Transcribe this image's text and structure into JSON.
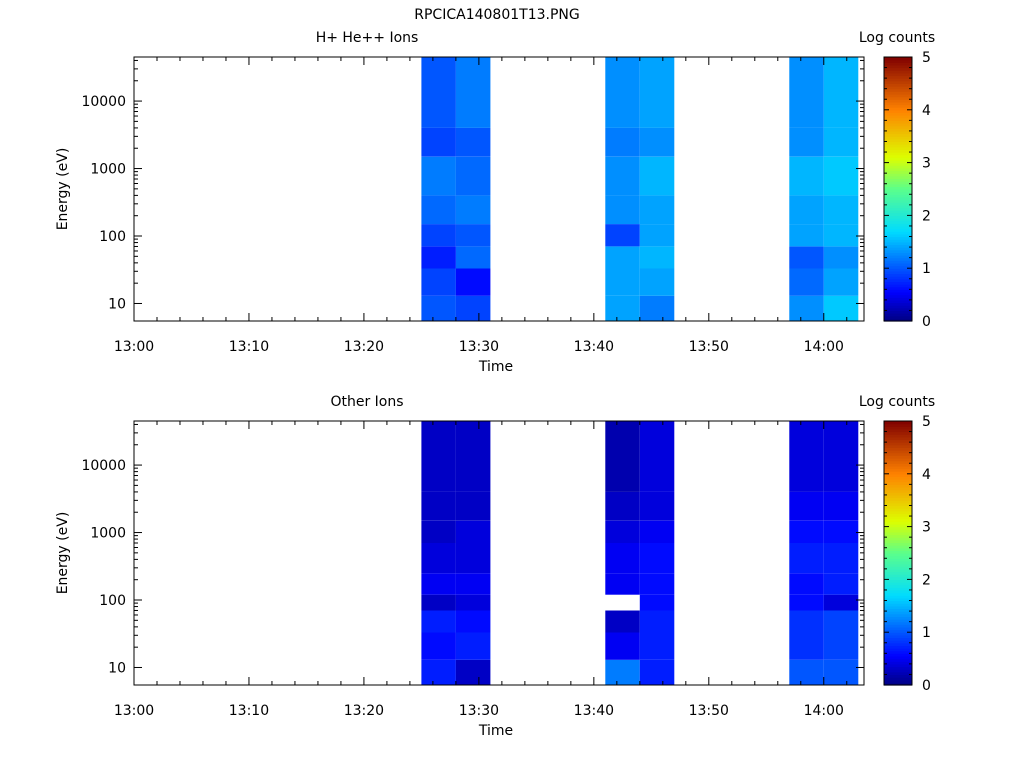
{
  "figure_title": "RPCICA140801T13.PNG",
  "chart_data": [
    {
      "type": "heatmap",
      "title": "H+ He++ Ions",
      "xlabel": "Time",
      "ylabel": "Energy (eV)",
      "xticks": [
        "13:00",
        "13:10",
        "13:20",
        "13:30",
        "13:40",
        "13:50",
        "14:00"
      ],
      "yticks": [
        "10",
        "100",
        "1000",
        "10000"
      ],
      "y_scale": "log",
      "ylim": [
        5.5,
        45000
      ],
      "colorbar": {
        "label": "Log counts",
        "ticks": [
          "0",
          "1",
          "2",
          "3",
          "4",
          "5"
        ],
        "range": [
          0,
          5
        ]
      },
      "columns": [
        {
          "t_start": "13:25",
          "t_end": "13:28",
          "cells": [
            [
              5.5,
              13,
              1.0
            ],
            [
              13,
              33,
              0.9
            ],
            [
              33,
              70,
              0.7
            ],
            [
              70,
              150,
              0.9
            ],
            [
              150,
              400,
              1.1
            ],
            [
              400,
              1500,
              1.2
            ],
            [
              1500,
              4000,
              0.9
            ],
            [
              4000,
              45000,
              1.0
            ]
          ]
        },
        {
          "t_start": "13:28",
          "t_end": "13:31",
          "cells": [
            [
              5.5,
              13,
              0.9
            ],
            [
              13,
              33,
              0.6
            ],
            [
              33,
              70,
              1.1
            ],
            [
              70,
              150,
              1.0
            ],
            [
              150,
              400,
              1.2
            ],
            [
              400,
              1500,
              1.1
            ],
            [
              1500,
              4000,
              1.0
            ],
            [
              4000,
              45000,
              1.2
            ]
          ]
        },
        {
          "t_start": "13:41",
          "t_end": "13:44",
          "cells": [
            [
              5.5,
              13,
              1.4
            ],
            [
              13,
              33,
              1.4
            ],
            [
              33,
              70,
              1.4
            ],
            [
              70,
              150,
              0.9
            ],
            [
              150,
              400,
              1.3
            ],
            [
              400,
              1500,
              1.3
            ],
            [
              1500,
              4000,
              1.2
            ],
            [
              4000,
              45000,
              1.3
            ]
          ]
        },
        {
          "t_start": "13:44",
          "t_end": "13:47",
          "cells": [
            [
              5.5,
              13,
              1.2
            ],
            [
              13,
              33,
              1.4
            ],
            [
              33,
              70,
              1.5
            ],
            [
              70,
              150,
              1.4
            ],
            [
              150,
              400,
              1.4
            ],
            [
              400,
              1500,
              1.5
            ],
            [
              1500,
              4000,
              1.3
            ],
            [
              4000,
              45000,
              1.4
            ]
          ]
        },
        {
          "t_start": "13:57",
          "t_end": "14:00",
          "cells": [
            [
              5.5,
              13,
              1.3
            ],
            [
              13,
              33,
              1.1
            ],
            [
              33,
              70,
              1.0
            ],
            [
              70,
              150,
              1.4
            ],
            [
              150,
              400,
              1.4
            ],
            [
              400,
              1500,
              1.5
            ],
            [
              1500,
              4000,
              1.3
            ],
            [
              4000,
              45000,
              1.3
            ]
          ]
        },
        {
          "t_start": "14:00",
          "t_end": "14:03",
          "cells": [
            [
              5.5,
              13,
              1.6
            ],
            [
              13,
              33,
              1.4
            ],
            [
              33,
              70,
              1.3
            ],
            [
              70,
              150,
              1.5
            ],
            [
              150,
              400,
              1.5
            ],
            [
              400,
              1500,
              1.6
            ],
            [
              1500,
              4000,
              1.5
            ],
            [
              4000,
              45000,
              1.5
            ]
          ]
        }
      ]
    },
    {
      "type": "heatmap",
      "title": "Other Ions",
      "xlabel": "Time",
      "ylabel": "Energy (eV)",
      "xticks": [
        "13:00",
        "13:10",
        "13:20",
        "13:30",
        "13:40",
        "13:50",
        "14:00"
      ],
      "yticks": [
        "10",
        "100",
        "1000",
        "10000"
      ],
      "y_scale": "log",
      "ylim": [
        5.5,
        45000
      ],
      "colorbar": {
        "label": "Log counts",
        "ticks": [
          "0",
          "1",
          "2",
          "3",
          "4",
          "5"
        ],
        "range": [
          0,
          5
        ]
      },
      "columns": [
        {
          "t_start": "13:25",
          "t_end": "13:28",
          "cells": [
            [
              5.5,
              13,
              0.7
            ],
            [
              13,
              33,
              0.6
            ],
            [
              33,
              70,
              0.7
            ],
            [
              70,
              120,
              0.3
            ],
            [
              120,
              250,
              0.5
            ],
            [
              250,
              700,
              0.4
            ],
            [
              700,
              1500,
              0.3
            ],
            [
              1500,
              4000,
              0.3
            ],
            [
              4000,
              45000,
              0.3
            ]
          ]
        },
        {
          "t_start": "13:28",
          "t_end": "13:31",
          "cells": [
            [
              5.5,
              13,
              0.3
            ],
            [
              13,
              33,
              0.7
            ],
            [
              33,
              70,
              0.6
            ],
            [
              70,
              120,
              0.4
            ],
            [
              120,
              250,
              0.5
            ],
            [
              250,
              700,
              0.4
            ],
            [
              700,
              1500,
              0.4
            ],
            [
              1500,
              4000,
              0.3
            ],
            [
              4000,
              45000,
              0.3
            ]
          ]
        },
        {
          "t_start": "13:41",
          "t_end": "13:44",
          "cells": [
            [
              5.5,
              13,
              1.2
            ],
            [
              13,
              33,
              0.5
            ],
            [
              33,
              70,
              0.3
            ],
            [
              120,
              250,
              0.5
            ],
            [
              250,
              700,
              0.5
            ],
            [
              700,
              1500,
              0.4
            ],
            [
              1500,
              4000,
              0.3
            ],
            [
              4000,
              45000,
              0.2
            ]
          ]
        },
        {
          "t_start": "13:44",
          "t_end": "13:47",
          "cells": [
            [
              5.5,
              13,
              0.7
            ],
            [
              13,
              33,
              0.7
            ],
            [
              33,
              70,
              0.7
            ],
            [
              70,
              120,
              0.6
            ],
            [
              120,
              250,
              0.6
            ],
            [
              250,
              700,
              0.6
            ],
            [
              700,
              1500,
              0.5
            ],
            [
              1500,
              4000,
              0.4
            ],
            [
              4000,
              45000,
              0.4
            ]
          ]
        },
        {
          "t_start": "13:57",
          "t_end": "14:00",
          "cells": [
            [
              5.5,
              13,
              1.0
            ],
            [
              13,
              33,
              0.8
            ],
            [
              33,
              70,
              0.8
            ],
            [
              70,
              120,
              0.6
            ],
            [
              120,
              250,
              0.6
            ],
            [
              250,
              700,
              0.7
            ],
            [
              700,
              1500,
              0.6
            ],
            [
              1500,
              4000,
              0.5
            ],
            [
              4000,
              45000,
              0.4
            ]
          ]
        },
        {
          "t_start": "14:00",
          "t_end": "14:03",
          "cells": [
            [
              5.5,
              13,
              1.0
            ],
            [
              13,
              33,
              0.9
            ],
            [
              33,
              70,
              0.9
            ],
            [
              70,
              120,
              0.4
            ],
            [
              120,
              250,
              0.7
            ],
            [
              250,
              700,
              0.7
            ],
            [
              700,
              1500,
              0.6
            ],
            [
              1500,
              4000,
              0.5
            ],
            [
              4000,
              45000,
              0.4
            ]
          ]
        }
      ]
    }
  ]
}
